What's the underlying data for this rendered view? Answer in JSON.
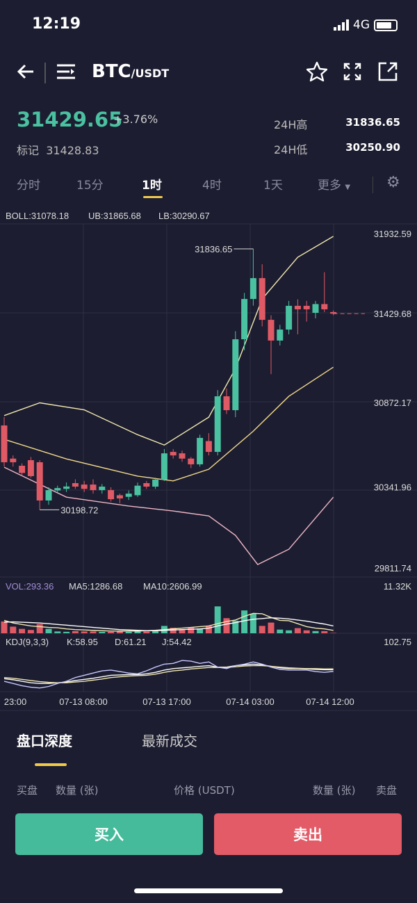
{
  "status": {
    "time": "12:19",
    "network": "4G"
  },
  "header": {
    "base": "BTC",
    "quote": "/USDT",
    "icons": [
      "back-arrow-icon",
      "menu-icon",
      "star-icon",
      "fullscreen-icon",
      "share-icon"
    ]
  },
  "ticker": {
    "last_price": "31429.65",
    "change": "+3.76%",
    "mark_label": "标记",
    "mark_price": "31428.83",
    "high_label": "24H高",
    "high": "31836.65",
    "low_label": "24H低",
    "low": "30250.90"
  },
  "tabs": [
    {
      "label": "分时"
    },
    {
      "label": "15分"
    },
    {
      "label": "1时"
    },
    {
      "label": "4时"
    },
    {
      "label": "1天"
    },
    {
      "label": "更多"
    }
  ],
  "active_tab": "1时",
  "colors": {
    "up": "#4ac1a0",
    "down": "#e05a66",
    "bg": "#1c1d30",
    "accent": "#f0c94b"
  },
  "chart_data": {
    "type": "candlestick",
    "boll_label": "BOLL:31078.18",
    "ub_label": "UB:31865.68",
    "lb_label": "LB:30290.67",
    "y_ticks": [
      "31932.59",
      "30872.17",
      "30341.96",
      "29811.74"
    ],
    "ylim": [
      29811.74,
      31932.59
    ],
    "max_label": "31836.65",
    "min_label": "30198.72",
    "current_label": "31429.68",
    "current": 31429.68,
    "candles": [
      [
        30728,
        30497,
        30781,
        30470
      ],
      [
        30520,
        30497,
        30540,
        30470
      ],
      [
        30475,
        30430,
        30490,
        30410
      ],
      [
        30510,
        30410,
        30530,
        30400
      ],
      [
        30497,
        30257,
        30510,
        30198.72
      ],
      [
        30257,
        30322,
        30340,
        30230
      ],
      [
        30320,
        30335,
        30350,
        30300
      ],
      [
        30330,
        30345,
        30370,
        30310
      ],
      [
        30366,
        30344,
        30390,
        30330
      ],
      [
        30357,
        30330,
        30380,
        30310
      ],
      [
        30357,
        30322,
        30390,
        30300
      ],
      [
        30322,
        30344,
        30360,
        30300
      ],
      [
        30322,
        30265,
        30340,
        30250
      ],
      [
        30290,
        30270,
        30300,
        30240
      ],
      [
        30280,
        30300,
        30320,
        30260
      ],
      [
        30290,
        30350,
        30370,
        30280
      ],
      [
        30366,
        30344,
        30380,
        30330
      ],
      [
        30344,
        30388,
        30400,
        30330
      ],
      [
        30388,
        30553,
        30580,
        30380
      ],
      [
        30562,
        30540,
        30580,
        30520
      ],
      [
        30553,
        30520,
        30570,
        30500
      ],
      [
        30520,
        30484,
        30530,
        30460
      ],
      [
        30484,
        30650,
        30670,
        30470
      ],
      [
        30630,
        30562,
        30680,
        30540
      ],
      [
        30562,
        30911,
        30950,
        30540
      ],
      [
        30911,
        30824,
        30960,
        30800
      ],
      [
        30824,
        31269,
        31320,
        30780
      ],
      [
        31269,
        31522,
        31560,
        31200
      ],
      [
        31522,
        31653,
        31836.65,
        31480
      ],
      [
        31653,
        31391,
        31740,
        31350
      ],
      [
        31391,
        31261,
        31420,
        31050
      ],
      [
        31261,
        31330,
        31360,
        31230
      ],
      [
        31330,
        31479,
        31510,
        31300
      ],
      [
        31479,
        31457,
        31520,
        31300
      ],
      [
        31479,
        31457,
        31510,
        31380
      ],
      [
        31435,
        31490,
        31510,
        31400
      ],
      [
        31490,
        31457,
        31690,
        31440
      ],
      [
        31440,
        31429.68,
        31450,
        31420
      ]
    ],
    "boll_upper": [
      [
        0,
        30790
      ],
      [
        4,
        30870
      ],
      [
        9,
        30826
      ],
      [
        15,
        30670
      ],
      [
        18,
        30605
      ],
      [
        23,
        30780
      ],
      [
        26,
        31085
      ],
      [
        29,
        31522
      ],
      [
        33,
        31784
      ],
      [
        37,
        31915
      ]
    ],
    "boll_mid": [
      [
        0,
        30641
      ],
      [
        7,
        30518
      ],
      [
        15,
        30410
      ],
      [
        19,
        30380
      ],
      [
        23,
        30453
      ],
      [
        28,
        30692
      ],
      [
        32,
        30911
      ],
      [
        37,
        31094
      ]
    ],
    "boll_lower": [
      [
        0,
        30466
      ],
      [
        7,
        30278
      ],
      [
        14,
        30222
      ],
      [
        19,
        30191
      ],
      [
        23,
        30160
      ],
      [
        26,
        30038
      ],
      [
        28.5,
        29855
      ],
      [
        32,
        29951
      ],
      [
        37,
        30278
      ]
    ],
    "volume": {
      "label": "VOL:293.36",
      "ma5_label": "MA5:1286.68",
      "ma10_label": "MA10:2606.99",
      "max_label": "11.32K",
      "max": 11.32,
      "values": [
        3.2,
        1.8,
        1.2,
        0.9,
        2.5,
        1.2,
        0.5,
        0.4,
        0.6,
        0.5,
        0.5,
        0.4,
        0.4,
        0.5,
        0.4,
        0.5,
        0.5,
        0.6,
        2.0,
        1.5,
        1.0,
        1.6,
        1.3,
        2.0,
        7.3,
        4.1,
        3.4,
        6.2,
        5.3,
        2.0,
        2.9,
        1.0,
        0.8,
        1.4,
        0.8,
        0.6,
        0.6,
        0.1
      ],
      "ma5": [
        3.5,
        2.8,
        2.4,
        2.0,
        1.8,
        1.6,
        1.5,
        1.2,
        1.0,
        0.9,
        0.8,
        0.7,
        0.6,
        0.6,
        0.6,
        0.6,
        0.7,
        0.8,
        1.0,
        1.2,
        1.4,
        1.6,
        1.8,
        2.0,
        2.6,
        3.2,
        3.6,
        4.6,
        5.4,
        5.3,
        4.3,
        3.5,
        3.4,
        2.6,
        1.8,
        1.4,
        1.2,
        0.8
      ],
      "ma10": [
        3.0,
        3.1,
        3.0,
        2.9,
        2.8,
        2.6,
        2.4,
        2.2,
        2.0,
        1.8,
        1.6,
        1.4,
        1.2,
        1.0,
        0.9,
        0.8,
        0.7,
        0.7,
        0.8,
        0.9,
        1.0,
        1.1,
        1.2,
        1.4,
        2.0,
        2.5,
        2.9,
        3.4,
        3.8,
        4.0,
        4.2,
        4.1,
        3.9,
        3.6,
        3.3,
        2.9,
        2.5,
        2.0
      ]
    },
    "kdj": {
      "label": "KDJ(9,3,3)",
      "k_label": "K:58.95",
      "d_label": "D:61.21",
      "j_label": "J:54.42",
      "max_label": "102.75",
      "max": 102.75,
      "k": [
        35,
        32,
        28,
        24,
        22,
        22,
        24,
        26,
        30,
        33,
        36,
        40,
        44,
        45,
        46,
        46,
        48,
        52,
        58,
        62,
        64,
        66,
        68,
        70,
        66,
        66,
        70,
        72,
        74,
        72,
        68,
        64,
        62,
        62,
        61,
        60,
        59,
        58.95
      ],
      "d": [
        38,
        36,
        33,
        30,
        27,
        25,
        24,
        24,
        26,
        28,
        31,
        34,
        38,
        40,
        42,
        43,
        44,
        47,
        52,
        56,
        58,
        61,
        63,
        65,
        65,
        65,
        67,
        69,
        70,
        70,
        68,
        66,
        64,
        63,
        62,
        62,
        61,
        61.21
      ],
      "j": [
        28,
        22,
        16,
        12,
        10,
        14,
        22,
        28,
        38,
        44,
        50,
        56,
        58,
        54,
        50,
        48,
        56,
        66,
        74,
        76,
        84,
        82,
        76,
        80,
        66,
        62,
        70,
        74,
        80,
        74,
        66,
        60,
        58,
        58,
        58,
        54,
        52,
        54.42
      ]
    },
    "x_ticks": [
      "23:00",
      "07-13 08:00",
      "07-13 17:00",
      "07-14 03:00",
      "07-14 12:00"
    ]
  },
  "orderbook": {
    "tabs": [
      "盘口深度",
      "最新成交"
    ],
    "columns": [
      "买盘",
      "数量 (张)",
      "价格 (USDT)",
      "数量 (张)",
      "卖盘"
    ]
  },
  "actions": {
    "buy": "买入",
    "sell": "卖出"
  }
}
